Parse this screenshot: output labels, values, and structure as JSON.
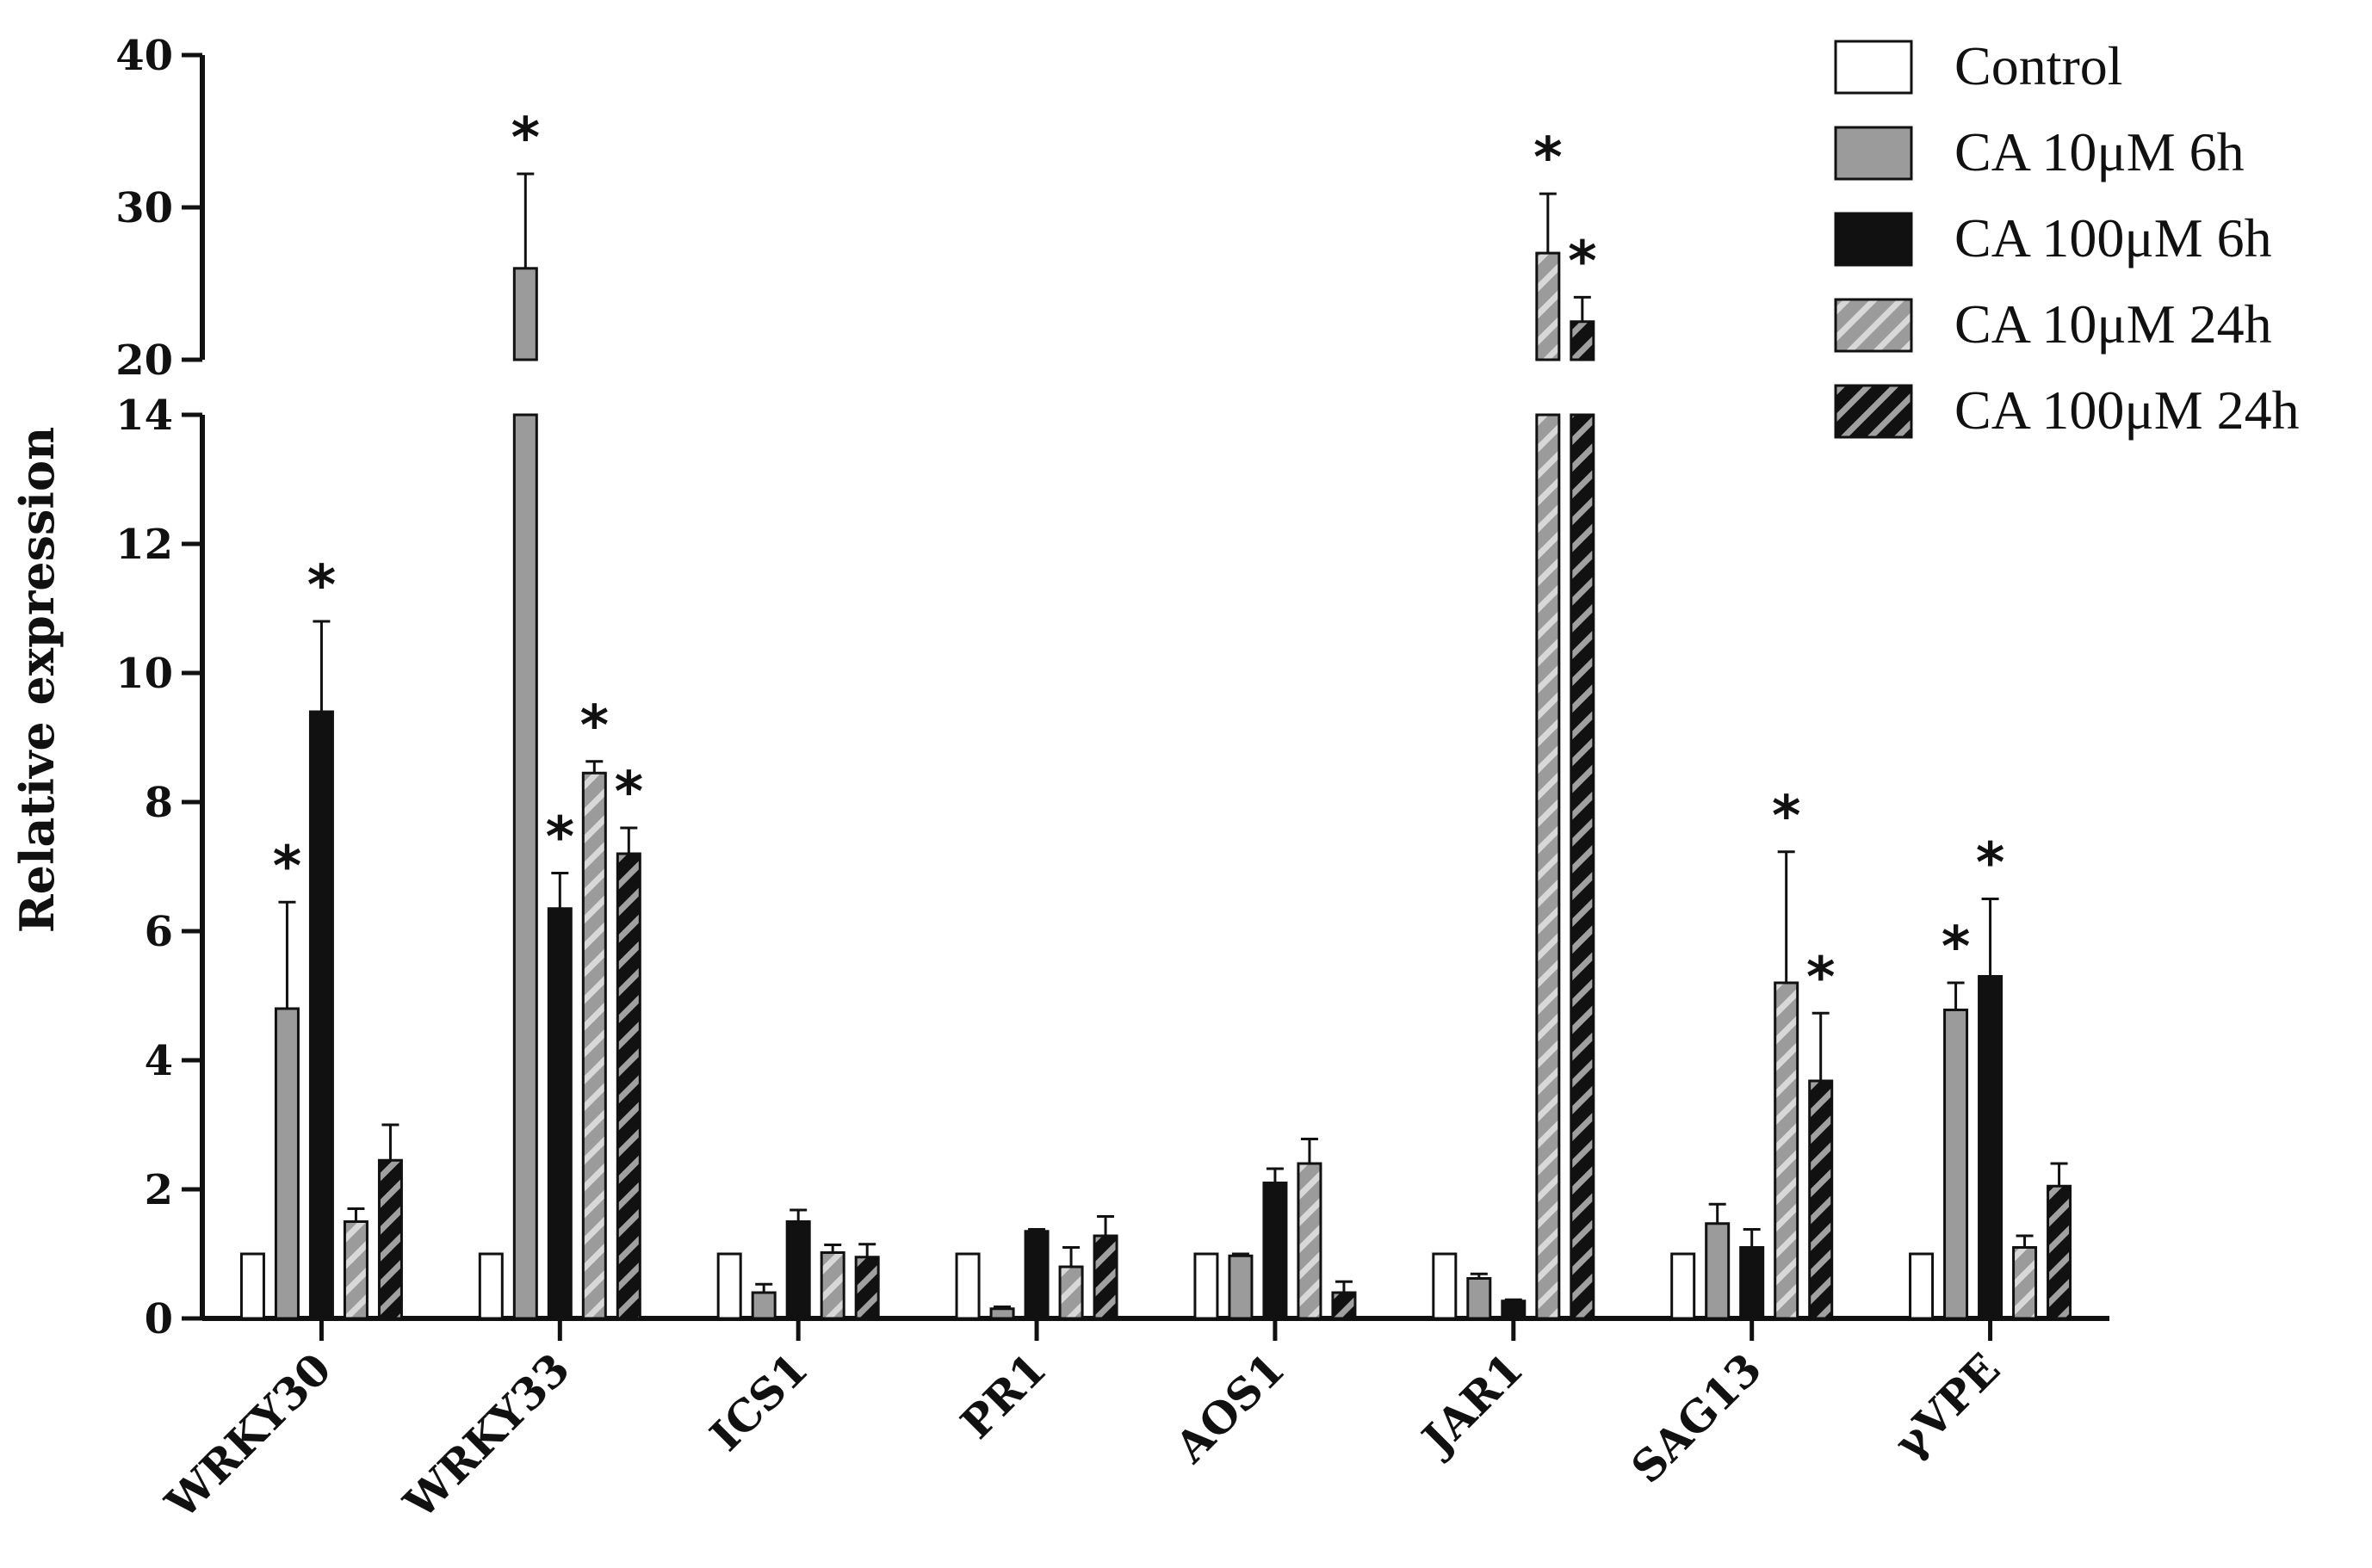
{
  "chart_data": {
    "type": "bar",
    "ylabel": "Relative expression",
    "categories": [
      "WRKY30",
      "WRKY33",
      "ICS1",
      "PR1",
      "AOS1",
      "JAR1",
      "SAG13",
      "γVPE"
    ],
    "y_axis": {
      "broken": true,
      "lower_range": [
        0,
        14
      ],
      "upper_range": [
        20,
        40
      ],
      "lower_ticks": [
        0,
        2,
        4,
        6,
        8,
        10,
        12,
        14
      ],
      "upper_ticks": [
        20,
        30,
        40
      ]
    },
    "legend_position": "top-right",
    "series": [
      {
        "name": "Control",
        "pattern": "solid",
        "color": "#ffffff",
        "values": [
          1,
          1,
          1,
          1,
          1,
          1,
          1,
          1
        ],
        "errors": [
          0,
          0,
          0,
          0,
          0,
          0,
          0,
          0
        ],
        "significant": [
          false,
          false,
          false,
          false,
          false,
          false,
          false,
          false
        ]
      },
      {
        "name": "CA 10μM 6h",
        "pattern": "solid",
        "color": "#9b9b9b",
        "values": [
          4.8,
          26,
          0.4,
          0.15,
          0.97,
          0.62,
          1.47,
          4.78
        ],
        "errors": [
          1.65,
          6.2,
          0.13,
          0.03,
          0.03,
          0.07,
          0.3,
          0.42
        ],
        "significant": [
          true,
          true,
          false,
          false,
          false,
          false,
          false,
          true
        ]
      },
      {
        "name": "CA 100μM 6h",
        "pattern": "solid",
        "color": "#111111",
        "values": [
          9.4,
          6.35,
          1.5,
          1.35,
          2.1,
          0.27,
          1.1,
          5.3
        ],
        "errors": [
          1.4,
          0.55,
          0.18,
          0.03,
          0.22,
          0.02,
          0.28,
          1.2
        ],
        "significant": [
          true,
          true,
          false,
          false,
          false,
          false,
          false,
          true
        ]
      },
      {
        "name": "CA 10μM 24h",
        "pattern": "hatched",
        "color": "#9b9b9b",
        "values": [
          1.5,
          8.45,
          1.02,
          0.8,
          2.4,
          27,
          5.2,
          1.1
        ],
        "errors": [
          0.2,
          0.18,
          0.12,
          0.3,
          0.38,
          3.9,
          2.03,
          0.18
        ],
        "significant": [
          false,
          true,
          false,
          false,
          false,
          true,
          true,
          false
        ]
      },
      {
        "name": "CA 100μM 24h",
        "pattern": "hatched",
        "color": "#111111",
        "values": [
          2.45,
          7.2,
          0.95,
          1.28,
          0.4,
          22.5,
          3.68,
          2.05
        ],
        "errors": [
          0.55,
          0.4,
          0.2,
          0.3,
          0.17,
          1.6,
          1.05,
          0.35
        ],
        "significant": [
          false,
          true,
          false,
          false,
          false,
          true,
          true,
          false
        ]
      }
    ]
  },
  "colors": {
    "axis": "#111111",
    "bar_outline": "#111111",
    "gray": "#9b9b9b",
    "black": "#111111",
    "hatch_light": "#d8d8d8",
    "hatch_dark": "#a0a0a0"
  }
}
